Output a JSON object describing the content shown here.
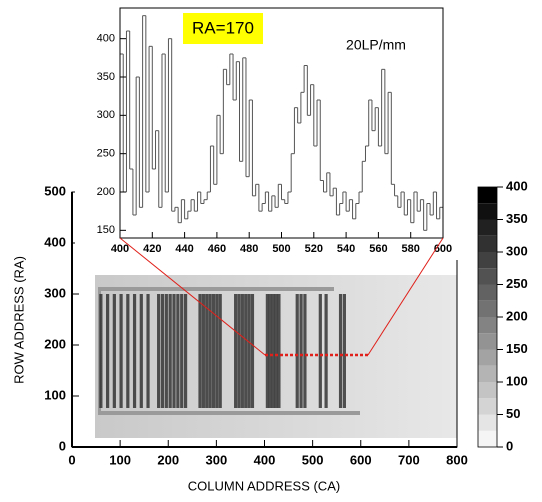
{
  "chart_data": [
    {
      "type": "heatmap",
      "xlabel": "COLUMN ADDRESS (CA)",
      "ylabel": "ROW ADDRESS (RA)",
      "xlim": [
        0,
        800
      ],
      "xticks": [
        0,
        100,
        200,
        300,
        400,
        500,
        600,
        700,
        800
      ],
      "ylim": [
        0,
        500
      ],
      "yticks": [
        0,
        100,
        200,
        300,
        400,
        500
      ],
      "zlim": [
        0,
        400
      ],
      "zticks": [
        0,
        50,
        100,
        150,
        200,
        250,
        300,
        350,
        400
      ],
      "stripes": [
        60,
        74,
        88,
        102,
        116,
        130,
        144,
        158,
        180,
        188,
        196,
        204,
        212,
        220,
        228,
        236,
        266,
        273,
        280,
        287,
        294,
        301,
        308,
        340,
        347,
        354,
        361,
        368,
        375,
        406,
        412,
        418,
        424,
        430,
        468,
        476,
        484,
        516,
        528,
        558,
        566
      ]
    },
    {
      "type": "step",
      "annotations": [
        "RA=170",
        "20LP/mm"
      ],
      "color": "#555555",
      "xlim": [
        400,
        600
      ],
      "xticks": [
        400,
        420,
        440,
        460,
        480,
        500,
        520,
        540,
        560,
        580,
        600
      ],
      "ylim": [
        140,
        440
      ],
      "yticks": [
        150,
        200,
        250,
        300,
        350,
        400
      ],
      "x": [
        400,
        402,
        404,
        406,
        408,
        410,
        412,
        414,
        416,
        418,
        420,
        422,
        424,
        426,
        428,
        430,
        432,
        434,
        436,
        438,
        440,
        442,
        444,
        446,
        448,
        450,
        452,
        454,
        456,
        458,
        460,
        462,
        464,
        466,
        468,
        470,
        472,
        474,
        476,
        478,
        480,
        482,
        484,
        486,
        488,
        490,
        492,
        494,
        496,
        498,
        500,
        502,
        504,
        506,
        508,
        510,
        512,
        514,
        516,
        518,
        520,
        522,
        524,
        526,
        528,
        530,
        532,
        534,
        536,
        538,
        540,
        542,
        544,
        546,
        548,
        550,
        552,
        554,
        556,
        558,
        560,
        562,
        564,
        566,
        568,
        570,
        572,
        574,
        576,
        578,
        580,
        582,
        584,
        586,
        588,
        590,
        592,
        594,
        596,
        598
      ],
      "values": [
        380,
        200,
        410,
        230,
        170,
        350,
        180,
        430,
        200,
        390,
        230,
        280,
        180,
        380,
        200,
        400,
        175,
        180,
        160,
        190,
        165,
        175,
        190,
        175,
        200,
        185,
        190,
        200,
        260,
        210,
        300,
        250,
        360,
        340,
        380,
        320,
        370,
        240,
        375,
        220,
        320,
        195,
        210,
        175,
        185,
        200,
        175,
        195,
        180,
        210,
        190,
        185,
        200,
        250,
        310,
        290,
        330,
        365,
        300,
        340,
        260,
        320,
        215,
        200,
        225,
        195,
        205,
        170,
        185,
        200,
        175,
        190,
        165,
        185,
        200,
        240,
        260,
        320,
        280,
        310,
        260,
        360,
        250,
        330,
        210,
        195,
        180,
        200,
        170,
        190,
        160,
        200,
        175,
        190,
        150,
        185,
        170,
        200,
        165,
        180
      ]
    }
  ]
}
